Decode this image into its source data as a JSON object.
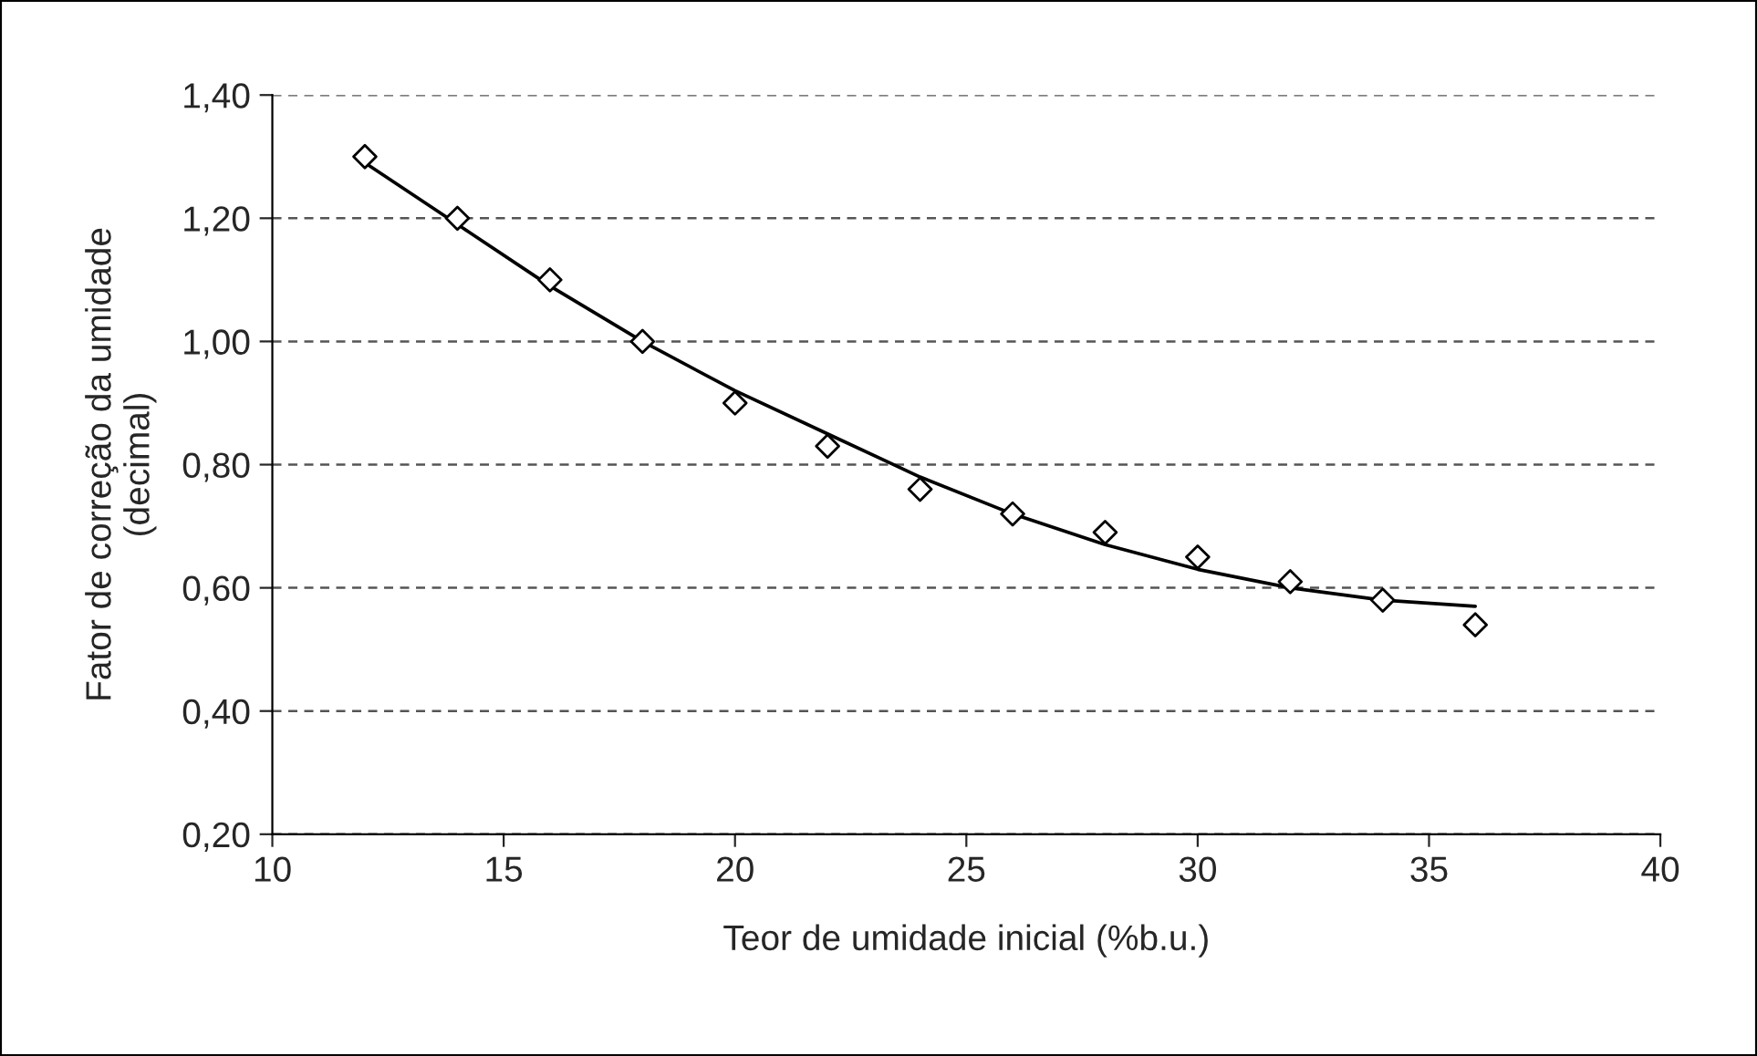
{
  "chart_data": {
    "type": "scatter",
    "xlabel": "Teor de umidade inicial (%b.u.)",
    "ylabel": "Fator de correção da umidade\n(decimal)",
    "xlim": [
      10,
      40
    ],
    "xticks": [
      10,
      15,
      20,
      25,
      30,
      35,
      40
    ],
    "ylim": [
      0.2,
      1.4
    ],
    "yticks": [
      {
        "value": 0.2,
        "label": "0,20"
      },
      {
        "value": 0.4,
        "label": "0,40"
      },
      {
        "value": 0.6,
        "label": "0,60"
      },
      {
        "value": 0.8,
        "label": "0,80"
      },
      {
        "value": 1.0,
        "label": "1,00"
      },
      {
        "value": 1.2,
        "label": "1,20"
      },
      {
        "value": 1.4,
        "label": "1,40"
      }
    ],
    "grid": "y",
    "legend": false,
    "series": [
      {
        "marker": "diamond",
        "color": "#000000",
        "x": [
          12,
          14,
          16,
          18,
          20,
          22,
          24,
          26,
          28,
          30,
          32,
          34,
          36
        ],
        "values": [
          1.3,
          1.2,
          1.1,
          1.0,
          0.9,
          0.83,
          0.76,
          0.72,
          0.69,
          0.65,
          0.61,
          0.58,
          0.54
        ]
      },
      {
        "type": "line",
        "marker": "none",
        "line_style": "solid",
        "color": "#000000",
        "x": [
          12,
          14,
          16,
          18,
          20,
          22,
          24,
          26,
          28,
          30,
          32,
          34,
          36
        ],
        "values": [
          1.29,
          1.19,
          1.09,
          1.0,
          0.92,
          0.85,
          0.78,
          0.72,
          0.67,
          0.63,
          0.6,
          0.58,
          0.57
        ]
      }
    ]
  }
}
